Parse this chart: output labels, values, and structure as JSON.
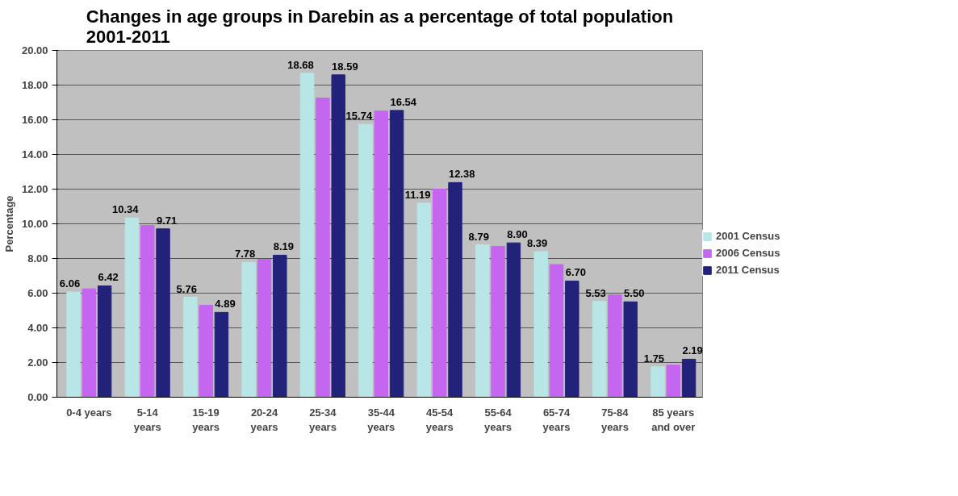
{
  "chart_data": {
    "type": "bar",
    "title": "Changes in age groups in Darebin as a percentage of total population 2001-2011",
    "ylabel": "Percentage",
    "categories": [
      "0-4 years",
      "5-14 years",
      "15-19 years",
      "20-24 years",
      "25-34 years",
      "35-44 years",
      "45-54 years",
      "55-64 years",
      "65-74 years",
      "75-84 years",
      "85 years and over"
    ],
    "series": [
      {
        "name": "2001 Census",
        "color": "#b8e6e6",
        "values": [
          6.06,
          10.34,
          5.76,
          7.78,
          18.68,
          15.74,
          11.19,
          8.79,
          8.39,
          5.53,
          1.75
        ],
        "value_labels": [
          "6.06",
          "10.34",
          "5.76",
          "7.78",
          "18.68",
          "15.74",
          "11.19",
          "8.79",
          "8.39",
          "5.53",
          "1.75"
        ]
      },
      {
        "name": "2006 Census",
        "color": "#c466f0",
        "values": [
          6.25,
          9.9,
          5.3,
          7.95,
          17.25,
          16.5,
          12.0,
          8.7,
          7.65,
          5.9,
          1.85
        ]
      },
      {
        "name": "2011 Census",
        "color": "#22227a",
        "values": [
          6.42,
          9.71,
          4.89,
          8.19,
          18.59,
          16.54,
          12.38,
          8.9,
          6.7,
          5.5,
          2.19
        ],
        "value_labels": [
          "6.42",
          "9.71",
          "4.89",
          "8.19",
          "18.59",
          "16.54",
          "12.38",
          "8.90",
          "6.70",
          "5.50",
          "2.19"
        ]
      }
    ],
    "ylim": [
      0,
      20
    ],
    "yticks": [
      {
        "value": 0,
        "label": "0.00"
      },
      {
        "value": 2,
        "label": "2.00"
      },
      {
        "value": 4,
        "label": "4.00"
      },
      {
        "value": 6,
        "label": "6.00"
      },
      {
        "value": 8,
        "label": "8.00"
      },
      {
        "value": 10,
        "label": "10.00"
      },
      {
        "value": 12,
        "label": "12.00"
      },
      {
        "value": 14,
        "label": "14.00"
      },
      {
        "value": 16,
        "label": "16.00"
      },
      {
        "value": 18,
        "label": "18.00"
      },
      {
        "value": 20,
        "label": "20.00"
      }
    ],
    "grid": "y",
    "legend": "right"
  }
}
